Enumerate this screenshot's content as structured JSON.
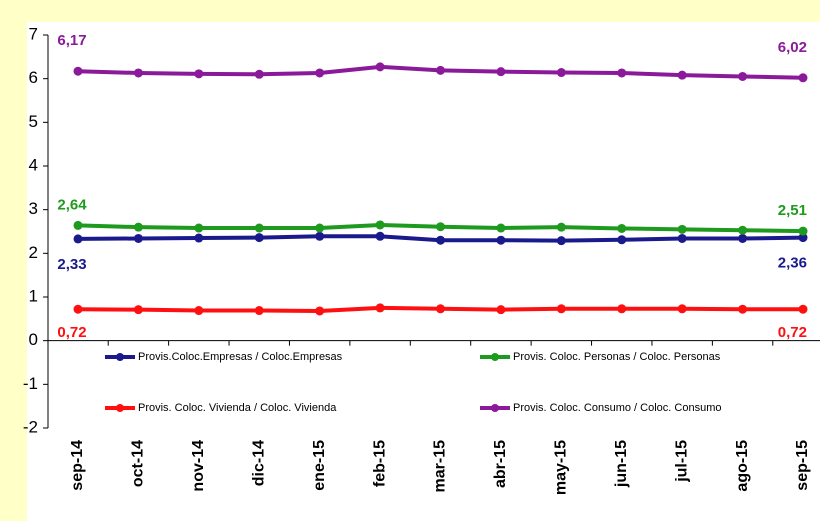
{
  "chart_data": {
    "type": "line",
    "categories": [
      "sep-14",
      "oct-14",
      "nov-14",
      "dic-14",
      "ene-15",
      "feb-15",
      "mar-15",
      "abr-15",
      "may-15",
      "jun-15",
      "jul-15",
      "ago-15",
      "sep-15"
    ],
    "series": [
      {
        "name": "Provis.Coloc.Empresas / Coloc.Empresas",
        "color": "#1a1a8c",
        "values": [
          2.33,
          2.34,
          2.35,
          2.36,
          2.39,
          2.39,
          2.3,
          2.3,
          2.29,
          2.31,
          2.34,
          2.34,
          2.36
        ],
        "value_labels": [
          "2,33",
          null,
          null,
          null,
          null,
          null,
          null,
          null,
          null,
          null,
          null,
          null,
          "2,36"
        ]
      },
      {
        "name": "Provis. Coloc. Personas / Coloc. Personas",
        "color": "#1e9a1e",
        "values": [
          2.64,
          2.6,
          2.58,
          2.58,
          2.58,
          2.65,
          2.61,
          2.58,
          2.6,
          2.57,
          2.55,
          2.53,
          2.51
        ],
        "value_labels": [
          "2,64",
          null,
          null,
          null,
          null,
          null,
          null,
          null,
          null,
          null,
          null,
          null,
          "2,51"
        ]
      },
      {
        "name": "Provis. Coloc. Vivienda / Coloc. Vivienda",
        "color": "#ff1010",
        "values": [
          0.72,
          0.71,
          0.69,
          0.69,
          0.68,
          0.75,
          0.73,
          0.71,
          0.73,
          0.73,
          0.73,
          0.72,
          0.72
        ],
        "value_labels": [
          "0,72",
          null,
          null,
          null,
          null,
          null,
          null,
          null,
          null,
          null,
          null,
          null,
          "0,72"
        ]
      },
      {
        "name": "Provis. Coloc. Consumo / Coloc. Consumo",
        "color": "#8b1a9b",
        "values": [
          6.17,
          6.13,
          6.11,
          6.1,
          6.13,
          6.27,
          6.19,
          6.16,
          6.14,
          6.13,
          6.08,
          6.05,
          6.02
        ],
        "value_labels": [
          "6,17",
          null,
          null,
          null,
          null,
          null,
          null,
          null,
          null,
          null,
          null,
          null,
          "6,02"
        ]
      }
    ],
    "ylim": [
      -2,
      7
    ],
    "yticks": [
      -2,
      -1,
      0,
      1,
      2,
      3,
      4,
      5,
      6,
      7
    ]
  }
}
